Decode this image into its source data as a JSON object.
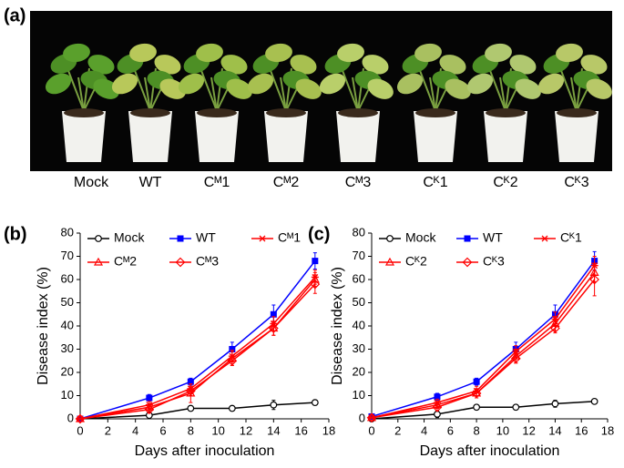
{
  "panels": [
    "(a)",
    "(b)",
    "(c)"
  ],
  "photo": {
    "labels": [
      "Mock",
      "WT",
      "Cᴹ1",
      "Cᴹ2",
      "Cᴹ3",
      "Cᴷ1",
      "Cᴷ2",
      "Cᴷ3"
    ]
  },
  "chart_data": [
    {
      "type": "line",
      "xlabel": "Days after inoculation",
      "ylabel": "Disease index (%)",
      "x": [
        0,
        5,
        8,
        11,
        14,
        17
      ],
      "xlim": [
        0,
        18
      ],
      "xticks": [
        0,
        2,
        4,
        6,
        8,
        10,
        12,
        14,
        16,
        18
      ],
      "ylim": [
        0,
        80
      ],
      "yticks": [
        0,
        10,
        20,
        30,
        40,
        50,
        60,
        70,
        80
      ],
      "series": [
        {
          "name": "Mock",
          "color": "#000000",
          "marker": "circle",
          "values": [
            0,
            1.5,
            4.5,
            4.5,
            6,
            7
          ],
          "errors": [
            0,
            1.5,
            1,
            1,
            2,
            1
          ]
        },
        {
          "name": "WT",
          "color": "#0000ff",
          "marker": "square",
          "values": [
            0,
            9,
            16,
            30,
            45,
            68
          ],
          "errors": [
            0,
            1.5,
            1.5,
            3,
            4,
            3.5
          ]
        },
        {
          "name": "Cᴹ1",
          "color": "#ff0000",
          "marker": "star",
          "values": [
            0,
            6,
            13,
            27,
            41,
            61
          ],
          "errors": [
            0,
            1.5,
            2,
            2.5,
            3,
            3
          ]
        },
        {
          "name": "Cᴹ2",
          "color": "#ff0000",
          "marker": "triangle",
          "values": [
            0,
            5,
            11,
            26,
            39,
            60
          ],
          "errors": [
            0,
            1.5,
            4,
            3,
            3,
            3
          ]
        },
        {
          "name": "Cᴹ3",
          "color": "#ff0000",
          "marker": "diamond",
          "values": [
            0,
            4,
            12,
            25,
            39,
            58
          ],
          "errors": [
            0,
            1.5,
            2,
            2,
            3,
            4
          ]
        }
      ]
    },
    {
      "type": "line",
      "xlabel": "Days after inoculation",
      "ylabel": "Disease index (%)",
      "x": [
        0,
        5,
        8,
        11,
        14,
        17
      ],
      "xlim": [
        0,
        18
      ],
      "xticks": [
        0,
        2,
        4,
        6,
        8,
        10,
        12,
        14,
        16,
        18
      ],
      "ylim": [
        0,
        80
      ],
      "yticks": [
        0,
        10,
        20,
        30,
        40,
        50,
        60,
        70,
        80
      ],
      "series": [
        {
          "name": "Mock",
          "color": "#000000",
          "marker": "circle",
          "values": [
            0,
            2,
            5,
            5,
            6.5,
            7.5
          ],
          "errors": [
            0,
            1.5,
            1,
            1,
            1.5,
            1
          ]
        },
        {
          "name": "WT",
          "color": "#0000ff",
          "marker": "square",
          "values": [
            1,
            9.5,
            16,
            30,
            45,
            68
          ],
          "errors": [
            0,
            1.5,
            1.5,
            3,
            4,
            4
          ]
        },
        {
          "name": "Cᴷ1",
          "color": "#ff0000",
          "marker": "star",
          "values": [
            0.5,
            7,
            12,
            29,
            43,
            66
          ],
          "errors": [
            0,
            1.5,
            2,
            2.5,
            3,
            4
          ]
        },
        {
          "name": "Cᴷ2",
          "color": "#ff0000",
          "marker": "triangle",
          "values": [
            0.5,
            6,
            11,
            27,
            41,
            63
          ],
          "errors": [
            0,
            1.5,
            2,
            3,
            3,
            4
          ]
        },
        {
          "name": "Cᴷ3",
          "color": "#ff0000",
          "marker": "diamond",
          "values": [
            0.5,
            5,
            11,
            26,
            39,
            60
          ],
          "errors": [
            0,
            1.5,
            2,
            2,
            2,
            7
          ]
        }
      ]
    }
  ]
}
